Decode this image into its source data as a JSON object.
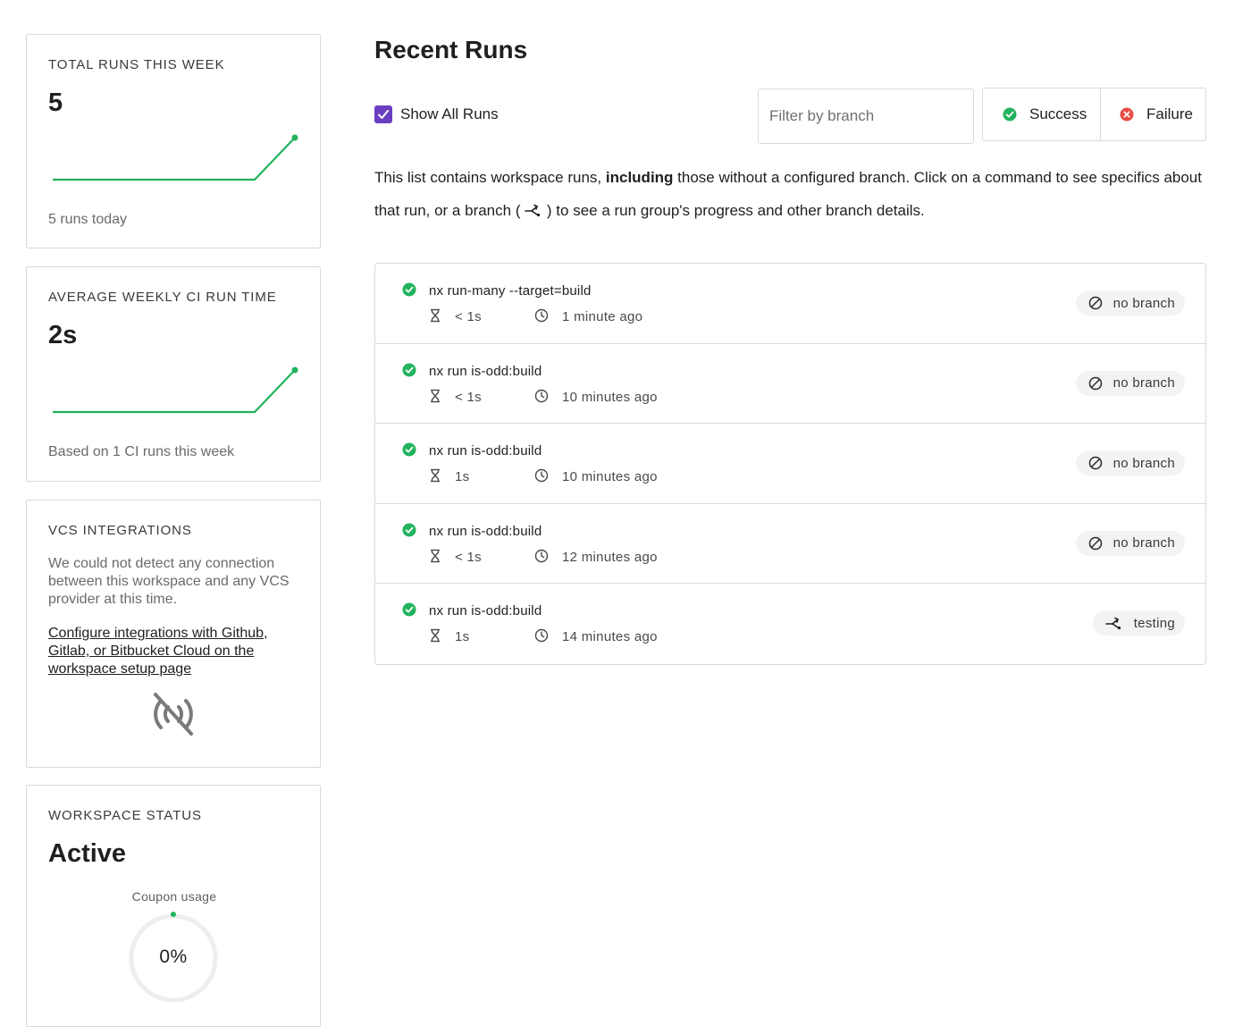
{
  "cards": {
    "total_runs": {
      "label": "TOTAL RUNS THIS WEEK",
      "value": "5",
      "footer": "5 runs today"
    },
    "avg_ci": {
      "label": "AVERAGE WEEKLY CI RUN TIME",
      "value": "2s",
      "footer": "Based on 1 CI runs this week"
    },
    "vcs": {
      "label": "VCS INTEGRATIONS",
      "text": "We could not detect any connection between this workspace and any VCS provider at this time.",
      "link": "Configure integrations with Github, Gitlab, or Bitbucket Cloud on the workspace setup page",
      "icon": "no-signal-icon"
    },
    "status": {
      "label": "WORKSPACE STATUS",
      "value": "Active",
      "coupon_label": "Coupon usage",
      "coupon_value": "0%"
    }
  },
  "main": {
    "title": "Recent Runs",
    "show_all_label": "Show All Runs",
    "show_all_checked": true,
    "filter_placeholder": "Filter by branch",
    "success_label": "Success",
    "failure_label": "Failure",
    "desc_1": "This list contains workspace runs, ",
    "desc_bold": "including",
    "desc_2": " those without a configured branch. Click on a command to see specifics about that run, or a branch ( ",
    "desc_3": " ) to see a run group's progress and other branch details."
  },
  "runs": [
    {
      "command": "nx run-many --target=build",
      "duration": "< 1s",
      "time": "1 minute ago",
      "branch": "no branch",
      "branch_icon": "no-branch-icon"
    },
    {
      "command": "nx run is-odd:build",
      "duration": "< 1s",
      "time": "10 minutes ago",
      "branch": "no branch",
      "branch_icon": "no-branch-icon"
    },
    {
      "command": "nx run is-odd:build",
      "duration": "1s",
      "time": "10 minutes ago",
      "branch": "no branch",
      "branch_icon": "no-branch-icon"
    },
    {
      "command": "nx run is-odd:build",
      "duration": "< 1s",
      "time": "12 minutes ago",
      "branch": "no branch",
      "branch_icon": "no-branch-icon"
    },
    {
      "command": "nx run is-odd:build",
      "duration": "1s",
      "time": "14 minutes ago",
      "branch": "testing",
      "branch_icon": "branch-icon"
    }
  ],
  "colors": {
    "success": "#22b35e",
    "failure": "#ea4b43",
    "checkbox": "#6a3fc1",
    "sparkline": "#22b35e"
  }
}
